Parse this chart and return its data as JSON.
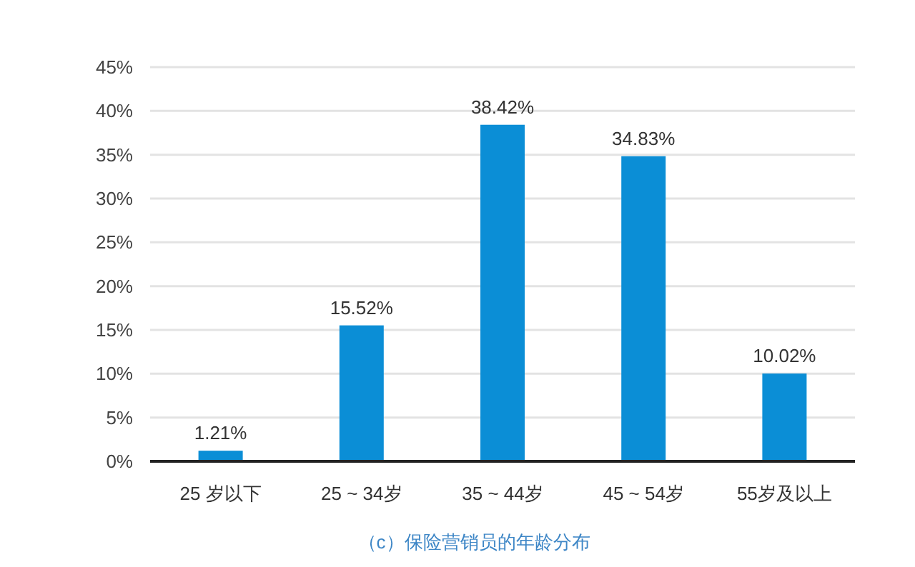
{
  "chart_data": {
    "type": "bar",
    "title": "（c）保险营销员的年龄分布",
    "categories": [
      "25 岁以下",
      "25 ~ 34岁",
      "35 ~ 44岁",
      "45 ~ 54岁",
      "55岁及以上"
    ],
    "values": [
      1.21,
      15.52,
      38.42,
      34.83,
      10.02
    ],
    "value_labels": [
      "1.21%",
      "15.52%",
      "38.42%",
      "34.83%",
      "10.02%"
    ],
    "color": "#0b8ed6",
    "ylim": [
      0,
      45
    ],
    "yticks": [
      {
        "value": 0,
        "label": "0%"
      },
      {
        "value": 5,
        "label": "5%"
      },
      {
        "value": 10,
        "label": "10%"
      },
      {
        "value": 15,
        "label": "15%"
      },
      {
        "value": 20,
        "label": "20%"
      },
      {
        "value": 25,
        "label": "25%"
      },
      {
        "value": 30,
        "label": "30%"
      },
      {
        "value": 35,
        "label": "35%"
      },
      {
        "value": 40,
        "label": "40%"
      },
      {
        "value": 45,
        "label": "45%"
      }
    ],
    "grid": "y"
  }
}
